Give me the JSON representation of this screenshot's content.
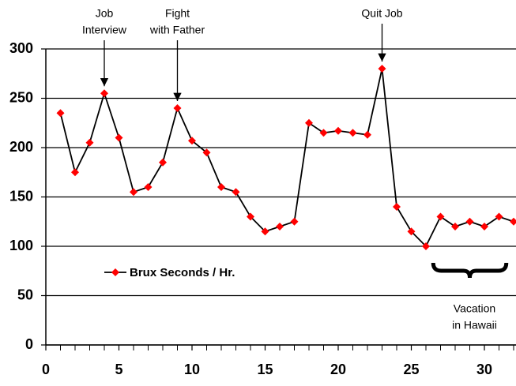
{
  "chart_data": {
    "type": "line",
    "x": [
      1,
      2,
      3,
      4,
      5,
      6,
      7,
      8,
      9,
      10,
      11,
      12,
      13,
      14,
      15,
      16,
      17,
      18,
      19,
      20,
      21,
      22,
      23,
      24,
      25,
      26,
      27,
      28,
      29,
      30,
      31,
      32
    ],
    "series": [
      {
        "name": "Brux Seconds / Hr.",
        "color": "#000000",
        "marker_color": "#ff0000",
        "values": [
          235,
          175,
          205,
          255,
          210,
          155,
          160,
          185,
          240,
          207,
          195,
          160,
          155,
          130,
          115,
          120,
          125,
          225,
          215,
          217,
          215,
          213,
          280,
          140,
          115,
          100,
          130,
          120,
          125,
          120,
          130,
          125
        ]
      }
    ],
    "xlim": [
      0,
      32
    ],
    "xticks": [
      0,
      5,
      10,
      15,
      20,
      25,
      30
    ],
    "xminor_ticks": [
      1,
      2,
      3,
      4,
      6,
      7,
      8,
      9,
      11,
      12,
      13,
      14,
      16,
      17,
      18,
      19,
      21,
      22,
      23,
      24,
      26,
      27,
      28,
      29,
      31,
      32
    ],
    "ylim": [
      0,
      300
    ],
    "yticks": [
      0,
      50,
      100,
      150,
      200,
      250,
      300
    ],
    "grid": true,
    "annotations": [
      {
        "lines": [
          "Job",
          "Interview"
        ],
        "x": 4
      },
      {
        "lines": [
          "Fight",
          "with Father"
        ],
        "x": 9
      },
      {
        "lines": [
          "Quit Job"
        ],
        "x": 23
      }
    ],
    "brace": {
      "lines": [
        "Vacation",
        "in Hawaii"
      ],
      "xrange": [
        26.5,
        31.5
      ]
    }
  }
}
